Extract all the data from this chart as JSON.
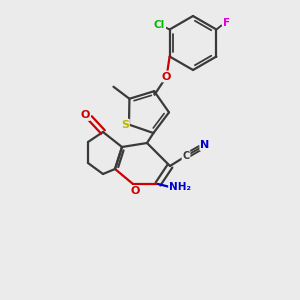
{
  "bg_color": "#ebebeb",
  "bond_color": "#3a3a3a",
  "atom_colors": {
    "C": "#3a3a3a",
    "N": "#0000cc",
    "O": "#cc0000",
    "S": "#b8b800",
    "Cl": "#00bb00",
    "F": "#dd00dd",
    "H": "#3a3a3a"
  },
  "figsize": [
    3.0,
    3.0
  ],
  "dpi": 100
}
